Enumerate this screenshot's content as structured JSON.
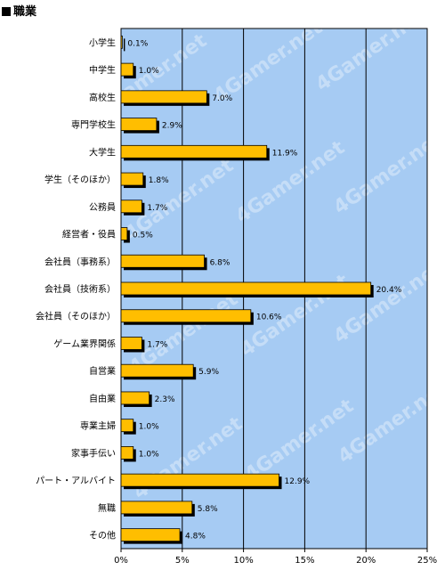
{
  "title": "職業",
  "colors": {
    "plot_bg": "#a6cbf3",
    "bar": "#ffbe00",
    "bar_stroke": "#000000",
    "shadow": "#000000",
    "grid": "#000000"
  },
  "chart_data": {
    "type": "bar",
    "orientation": "horizontal",
    "title": "職業",
    "categories": [
      "小学生",
      "中学生",
      "高校生",
      "専門学校生",
      "大学生",
      "学生（そのほか）",
      "公務員",
      "経営者・役員",
      "会社員（事務系）",
      "会社員（技術系）",
      "会社員（そのほか）",
      "ゲーム業界関係",
      "自営業",
      "自由業",
      "専業主婦",
      "家事手伝い",
      "パート・アルバイト",
      "無職",
      "その他"
    ],
    "values": [
      0.1,
      1.0,
      7.0,
      2.9,
      11.9,
      1.8,
      1.7,
      0.5,
      6.8,
      20.4,
      10.6,
      1.7,
      5.9,
      2.3,
      1.0,
      1.0,
      12.9,
      5.8,
      4.8
    ],
    "value_labels": [
      "0.1%",
      "1.0%",
      "7.0%",
      "2.9%",
      "11.9%",
      "1.8%",
      "1.7%",
      "0.5%",
      "6.8%",
      "20.4%",
      "10.6%",
      "1.7%",
      "5.9%",
      "2.3%",
      "1.0%",
      "1.0%",
      "12.9%",
      "5.8%",
      "4.8%"
    ],
    "xlim": [
      0,
      25
    ],
    "xticks": [
      0,
      5,
      10,
      15,
      20,
      25
    ],
    "xtick_labels": [
      "0%",
      "5%",
      "10%",
      "15%",
      "20%",
      "25%"
    ],
    "grid": true,
    "watermark": "4Gamer.net"
  }
}
